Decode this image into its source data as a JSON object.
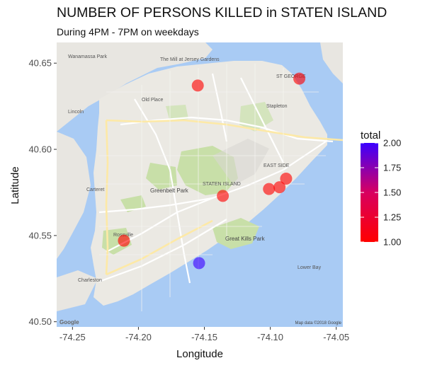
{
  "chart_data": {
    "type": "scatter",
    "title": "NUMBER OF PERSONS KILLED in STATEN ISLAND",
    "subtitle": "During 4PM - 7PM on weekdays",
    "xlabel": "Longitude",
    "ylabel": "Latitude",
    "xlim": [
      -74.262,
      -74.045
    ],
    "ylim": [
      40.497,
      40.662
    ],
    "x_ticks": [
      -74.25,
      -74.2,
      -74.15,
      -74.1,
      -74.05
    ],
    "x_tick_labels": [
      "-74.25",
      "-74.20",
      "-74.15",
      "-74.10",
      "-74.05"
    ],
    "y_ticks": [
      40.5,
      40.55,
      40.6,
      40.65
    ],
    "y_tick_labels": [
      "40.50",
      "40.55",
      "40.60",
      "40.65"
    ],
    "points": [
      {
        "x": -74.155,
        "y": 40.637,
        "total": 1
      },
      {
        "x": -74.078,
        "y": 40.641,
        "total": 1
      },
      {
        "x": -74.088,
        "y": 40.583,
        "total": 1
      },
      {
        "x": -74.093,
        "y": 40.578,
        "total": 1
      },
      {
        "x": -74.101,
        "y": 40.577,
        "total": 1
      },
      {
        "x": -74.136,
        "y": 40.573,
        "total": 1
      },
      {
        "x": -74.211,
        "y": 40.547,
        "total": 1
      },
      {
        "x": -74.154,
        "y": 40.534,
        "total": 2
      }
    ],
    "color_scale": {
      "name": "total",
      "low": 1.0,
      "high": 2.0,
      "low_color": "#ff0000",
      "high_color": "#3b00ff",
      "breaks": [
        "1.00",
        "1.25",
        "1.50",
        "1.75",
        "2.00"
      ]
    },
    "background": "Google basemap of Staten Island",
    "map_labels": [
      "Greenbelt Park",
      "Great Kills Park",
      "STATEN ISLAND",
      "Charleston",
      "Old Place",
      "Lincoln",
      "Carteret",
      "The Mill at Jersey Gardens",
      "Stapleton",
      "Lower Bay",
      "Wanamassa Park",
      "Rossville",
      "ST GEORGE",
      "EAST SIDE",
      "Google"
    ],
    "attribution": "Map data ©2018 Google"
  }
}
